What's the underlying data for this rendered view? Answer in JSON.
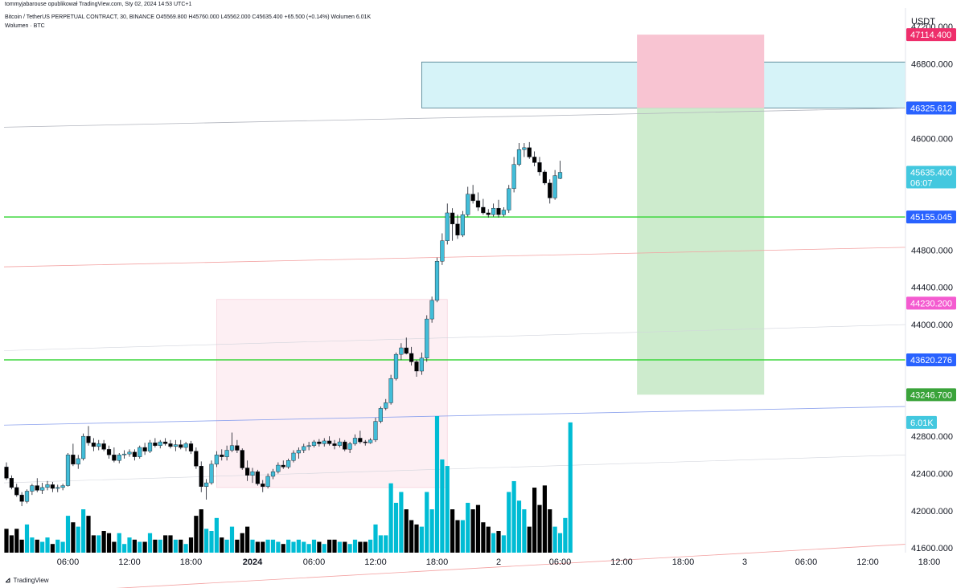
{
  "header": {
    "publisher_line": "tommyjabarouse opublikował TradingView.com, Sty 02, 2024 14:53 UTC+1",
    "symbol_line": "Bitcoin / TetherUS PERPETUAL CONTRACT, 30, BINANCE",
    "ohlc": "O45569.800 H45760.000 L45562.000 C45635.400 +65.500 (+0.14%)",
    "volume_label": "Wolumen 6.01K",
    "indicator_label": "Wolumen · BTC"
  },
  "footer": {
    "brand": "TradingView"
  },
  "chart_data": {
    "type": "candlestick",
    "currency": "USDT",
    "y_ticks": [
      47200,
      46800,
      46000,
      44800,
      44400,
      44000,
      42800,
      42400,
      42000,
      41600
    ],
    "y_tick_labels": [
      "47200.000",
      "46800.000",
      "46000.000",
      "44800.000",
      "44400.000",
      "44000.000",
      "42800.000",
      "42400.000",
      "42000.000",
      "41600.000"
    ],
    "ylim": [
      41550,
      47400
    ],
    "x_labels": [
      {
        "label": "06:00",
        "t": 12
      },
      {
        "label": "12:00",
        "t": 24
      },
      {
        "label": "18:00",
        "t": 36
      },
      {
        "label": "2024",
        "t": 48,
        "bold": true
      },
      {
        "label": "06:00",
        "t": 60
      },
      {
        "label": "12:00",
        "t": 72
      },
      {
        "label": "18:00",
        "t": 84
      },
      {
        "label": "2",
        "t": 96
      },
      {
        "label": "06:00",
        "t": 108
      },
      {
        "label": "12:00",
        "t": 120
      },
      {
        "label": "18:00",
        "t": 132
      },
      {
        "label": "3",
        "t": 144
      },
      {
        "label": "06:00",
        "t": 156
      },
      {
        "label": "12:00",
        "t": 168
      },
      {
        "label": "18:00",
        "t": 180
      }
    ],
    "candles": [
      [
        42470,
        42520,
        42330,
        42350
      ],
      [
        42350,
        42380,
        42230,
        42250
      ],
      [
        42250,
        42290,
        42150,
        42170
      ],
      [
        42170,
        42200,
        42050,
        42100
      ],
      [
        42100,
        42230,
        42080,
        42210
      ],
      [
        42210,
        42290,
        42170,
        42270
      ],
      [
        42270,
        42350,
        42200,
        42220
      ],
      [
        42220,
        42300,
        42180,
        42250
      ],
      [
        42250,
        42320,
        42220,
        42280
      ],
      [
        42280,
        42310,
        42200,
        42240
      ],
      [
        42240,
        42280,
        42200,
        42250
      ],
      [
        42250,
        42290,
        42220,
        42270
      ],
      [
        42270,
        42620,
        42260,
        42600
      ],
      [
        42600,
        42720,
        42480,
        42500
      ],
      [
        42500,
        42600,
        42450,
        42560
      ],
      [
        42560,
        42830,
        42540,
        42800
      ],
      [
        42800,
        42910,
        42700,
        42730
      ],
      [
        42730,
        42780,
        42640,
        42690
      ],
      [
        42690,
        42760,
        42650,
        42720
      ],
      [
        42720,
        42760,
        42640,
        42660
      ],
      [
        42660,
        42700,
        42560,
        42600
      ],
      [
        42600,
        42680,
        42520,
        42540
      ],
      [
        42540,
        42620,
        42510,
        42600
      ],
      [
        42600,
        42650,
        42560,
        42610
      ],
      [
        42610,
        42660,
        42580,
        42630
      ],
      [
        42630,
        42660,
        42540,
        42580
      ],
      [
        42580,
        42700,
        42560,
        42680
      ],
      [
        42680,
        42730,
        42600,
        42640
      ],
      [
        42640,
        42760,
        42620,
        42730
      ],
      [
        42730,
        42780,
        42680,
        42700
      ],
      [
        42700,
        42760,
        42670,
        42740
      ],
      [
        42740,
        42780,
        42700,
        42720
      ],
      [
        42720,
        42760,
        42670,
        42690
      ],
      [
        42690,
        42760,
        42640,
        42710
      ],
      [
        42710,
        42760,
        42660,
        42680
      ],
      [
        42680,
        42740,
        42640,
        42720
      ],
      [
        42720,
        42750,
        42610,
        42640
      ],
      [
        42640,
        42680,
        42450,
        42480
      ],
      [
        42480,
        42530,
        42200,
        42260
      ],
      [
        42260,
        42340,
        42120,
        42300
      ],
      [
        42300,
        42540,
        42280,
        42500
      ],
      [
        42500,
        42640,
        42470,
        42600
      ],
      [
        42600,
        42660,
        42540,
        42580
      ],
      [
        42580,
        42700,
        42540,
        42650
      ],
      [
        42650,
        42840,
        42630,
        42700
      ],
      [
        42700,
        42760,
        42620,
        42650
      ],
      [
        42650,
        42670,
        42440,
        42460
      ],
      [
        42460,
        42540,
        42320,
        42380
      ],
      [
        42380,
        42460,
        42300,
        42420
      ],
      [
        42420,
        42440,
        42270,
        42290
      ],
      [
        42290,
        42330,
        42200,
        42260
      ],
      [
        42260,
        42400,
        42240,
        42370
      ],
      [
        42370,
        42450,
        42340,
        42420
      ],
      [
        42420,
        42520,
        42400,
        42490
      ],
      [
        42490,
        42540,
        42450,
        42470
      ],
      [
        42470,
        42560,
        42450,
        42540
      ],
      [
        42540,
        42650,
        42520,
        42620
      ],
      [
        42620,
        42680,
        42560,
        42650
      ],
      [
        42650,
        42720,
        42620,
        42690
      ],
      [
        42690,
        42740,
        42650,
        42700
      ],
      [
        42700,
        42760,
        42680,
        42740
      ],
      [
        42740,
        42770,
        42690,
        42720
      ],
      [
        42720,
        42780,
        42690,
        42750
      ],
      [
        42750,
        42800,
        42700,
        42720
      ],
      [
        42720,
        42760,
        42660,
        42700
      ],
      [
        42700,
        42780,
        42680,
        42740
      ],
      [
        42740,
        42760,
        42640,
        42660
      ],
      [
        42660,
        42740,
        42620,
        42720
      ],
      [
        42720,
        42820,
        42700,
        42780
      ],
      [
        42780,
        42860,
        42720,
        42740
      ],
      [
        42740,
        42760,
        42700,
        42730
      ],
      [
        42730,
        42780,
        42720,
        42760
      ],
      [
        42760,
        43000,
        42740,
        42960
      ],
      [
        42960,
        43120,
        42940,
        43100
      ],
      [
        43100,
        43200,
        43080,
        43160
      ],
      [
        43160,
        43460,
        43140,
        43420
      ],
      [
        43420,
        43700,
        43400,
        43680
      ],
      [
        43680,
        43800,
        43620,
        43750
      ],
      [
        43750,
        43860,
        43680,
        43690
      ],
      [
        43690,
        43760,
        43560,
        43600
      ],
      [
        43600,
        43620,
        43440,
        43500
      ],
      [
        43500,
        43700,
        43460,
        43640
      ],
      [
        43640,
        44100,
        43600,
        44060
      ],
      [
        44060,
        44300,
        44020,
        44260
      ],
      [
        44260,
        44720,
        44240,
        44680
      ],
      [
        44680,
        44980,
        44640,
        44900
      ],
      [
        44900,
        45300,
        44860,
        45200
      ],
      [
        45200,
        45250,
        44900,
        45080
      ],
      [
        45080,
        45180,
        44920,
        44960
      ],
      [
        44960,
        45220,
        44940,
        45180
      ],
      [
        45180,
        45480,
        45160,
        45400
      ],
      [
        45400,
        45500,
        45300,
        45330
      ],
      [
        45330,
        45420,
        45220,
        45260
      ],
      [
        45260,
        45350,
        45180,
        45200
      ],
      [
        45200,
        45240,
        45150,
        45180
      ],
      [
        45180,
        45300,
        45160,
        45250
      ],
      [
        45250,
        45340,
        45150,
        45180
      ],
      [
        45180,
        45260,
        45160,
        45230
      ],
      [
        45230,
        45500,
        45200,
        45460
      ],
      [
        45460,
        45800,
        45420,
        45720
      ],
      [
        45720,
        45950,
        45700,
        45880
      ],
      [
        45880,
        45950,
        45800,
        45900
      ],
      [
        45900,
        45960,
        45780,
        45800
      ],
      [
        45800,
        45860,
        45700,
        45740
      ],
      [
        45740,
        45800,
        45600,
        45640
      ],
      [
        45640,
        45660,
        45500,
        45520
      ],
      [
        45520,
        45560,
        45300,
        45360
      ],
      [
        45360,
        45660,
        45340,
        45600
      ],
      [
        45569.8,
        45760,
        45562,
        45635.4
      ]
    ],
    "volumes": [
      1.1,
      0.8,
      1.1,
      0.6,
      1.3,
      0.7,
      0.6,
      0.5,
      0.7,
      0.4,
      0.6,
      0.5,
      1.7,
      1.4,
      1.2,
      2.0,
      1.7,
      0.8,
      0.8,
      1.0,
      0.9,
      0.5,
      0.9,
      0.4,
      0.7,
      0.6,
      0.5,
      0.5,
      0.9,
      0.6,
      0.6,
      0.8,
      0.8,
      0.6,
      0.6,
      0.4,
      0.7,
      1.7,
      2.0,
      1.1,
      1.0,
      1.6,
      0.7,
      0.6,
      1.2,
      0.6,
      0.9,
      1.2,
      0.6,
      0.5,
      0.5,
      0.6,
      0.6,
      0.5,
      0.4,
      0.6,
      0.5,
      0.6,
      0.5,
      0.4,
      0.6,
      0.5,
      0.4,
      0.6,
      0.6,
      0.5,
      0.5,
      0.4,
      0.6,
      0.5,
      0.5,
      0.6,
      1.3,
      0.8,
      0.8,
      3.2,
      2.3,
      2.8,
      2.0,
      1.5,
      1.3,
      1.2,
      2.8,
      2.0,
      6.3,
      4.3,
      4.0,
      2.0,
      1.5,
      1.5,
      2.3,
      2.0,
      2.2,
      1.4,
      1.2,
      0.9,
      1.0,
      0.8,
      2.8,
      3.3,
      2.4,
      2.0,
      1.2,
      3.0,
      2.2,
      3.1,
      2.0,
      1.2,
      0.9,
      1.6,
      6.01
    ],
    "volume_max": 6.3,
    "volume_last_label": "6.01K",
    "lines": [
      {
        "y0": 45155.045,
        "y1": 45155.045,
        "color": "#3bd63b",
        "width": 1.5
      },
      {
        "y0": 43620.276,
        "y1": 43620.276,
        "color": "#3bd63b",
        "width": 1.5
      },
      {
        "y0": 46120,
        "y1": 46325.612,
        "color": "#b2b5be",
        "width": 0.8
      },
      {
        "y0": 44620,
        "y1": 44830,
        "color": "#f3a0a0",
        "width": 0.8
      },
      {
        "y0": 42920,
        "y1": 43120,
        "color": "#8fa4ee",
        "width": 0.8
      },
      {
        "y0": 43720,
        "y1": 44000,
        "color": "#d1d4dc",
        "width": 0.6
      },
      {
        "y0": 42300,
        "y1": 42600,
        "color": "#d1d4dc",
        "width": 0.6
      },
      {
        "y0": 41100,
        "y1": 41640,
        "color": "#f3a0a0",
        "width": 0.8
      }
    ],
    "zones": [
      {
        "t0": 81,
        "t1": 180,
        "y0": 46326.8,
        "y1": 46820,
        "fill": "#d6f3f8",
        "stroke": "#4a7b8c"
      },
      {
        "t0": 41,
        "t1": 86,
        "y0": 42250,
        "y1": 44270,
        "fill": "#fdeff3",
        "stroke": "#f7d3dd"
      },
      {
        "t0": 123,
        "t1": 147.8,
        "y0": 46326.8,
        "y1": 47114.4,
        "fill": "#f8c4d2",
        "stroke": "none"
      },
      {
        "t0": 123,
        "t1": 147.8,
        "y0": 43246.7,
        "y1": 46326.8,
        "fill": "#cdebcd",
        "stroke": "none"
      }
    ],
    "price_tags": [
      {
        "label": "47114.400",
        "y": 47114.4,
        "bg": "#ee2e6b"
      },
      {
        "label": "46326.800",
        "y": 46326.8,
        "bg": "#6e7079"
      },
      {
        "label": "46325.612",
        "y": 46325.612,
        "bg": "#2962ff"
      },
      {
        "label": "45635.400",
        "y": 45635.4,
        "bg": "#43c8df",
        "sub": "06:07"
      },
      {
        "label": "45155.045",
        "y": 45155.045,
        "bg": "#2962ff"
      },
      {
        "label": "44230.200",
        "y": 44230.2,
        "bg": "#f45bd0"
      },
      {
        "label": "43620.276",
        "y": 43620.276,
        "bg": "#2962ff"
      },
      {
        "label": "43246.700",
        "y": 43246.7,
        "bg": "#3aa33a"
      }
    ],
    "colors": {
      "up": "#42bdd8",
      "down": "#000000",
      "vol_up": "#00bcd4",
      "vol_down": "#000000"
    }
  }
}
